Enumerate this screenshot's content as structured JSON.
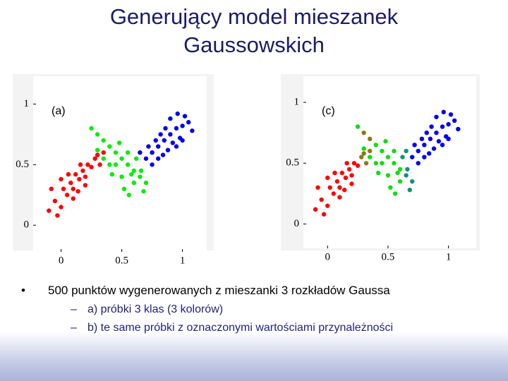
{
  "title": [
    "Generujący model mieszanek",
    "Gaussowskich"
  ],
  "bullets": [
    {
      "marker": "•",
      "text": "500 punktów wygenerowanych z mieszanki 3 rozkładów Gaussa"
    },
    {
      "marker": "–",
      "text": "a) próbki 3 klas (3 kolorów)"
    },
    {
      "marker": "–",
      "text": "b) te same próbki z oznaczonymi wartościami przynależności"
    }
  ],
  "chart_data": [
    {
      "type": "scatter",
      "annotation": "(a)",
      "xlim": [
        -0.23,
        1.2
      ],
      "ylim": [
        -0.22,
        1.23
      ],
      "xticks": [
        0,
        0.5,
        1
      ],
      "yticks": [
        0,
        0.5,
        1
      ],
      "series": [
        {
          "color": "#ff0000",
          "x": [
            -0.1,
            -0.05,
            0.0,
            0.02,
            0.05,
            0.08,
            0.1,
            0.12,
            0.15,
            0.18,
            0.2,
            0.22,
            0.25,
            0.28,
            0.3,
            0.06,
            0.0,
            -0.08,
            0.14,
            0.2,
            0.32,
            0.35,
            0.1,
            -0.03,
            0.16
          ],
          "y": [
            0.12,
            0.2,
            0.15,
            0.3,
            0.25,
            0.35,
            0.3,
            0.42,
            0.38,
            0.45,
            0.4,
            0.5,
            0.48,
            0.55,
            0.58,
            0.42,
            0.38,
            0.3,
            0.28,
            0.33,
            0.5,
            0.6,
            0.22,
            0.08,
            0.5
          ]
        },
        {
          "color": "#00ee00",
          "x": [
            0.3,
            0.35,
            0.4,
            0.45,
            0.5,
            0.55,
            0.6,
            0.65,
            0.7,
            0.5,
            0.45,
            0.55,
            0.6,
            0.4,
            0.52,
            0.62,
            0.25,
            0.48,
            0.58,
            0.68,
            0.35,
            0.42,
            0.56,
            0.66,
            0.3
          ],
          "y": [
            0.75,
            0.7,
            0.65,
            0.6,
            0.55,
            0.5,
            0.45,
            0.4,
            0.35,
            0.4,
            0.5,
            0.6,
            0.35,
            0.5,
            0.3,
            0.55,
            0.8,
            0.68,
            0.42,
            0.28,
            0.55,
            0.42,
            0.25,
            0.45,
            0.62
          ]
        },
        {
          "color": "#0000ee",
          "x": [
            0.7,
            0.75,
            0.8,
            0.85,
            0.9,
            0.95,
            1.0,
            1.05,
            0.8,
            0.88,
            0.92,
            0.98,
            1.02,
            0.86,
            0.75,
            0.82,
            0.95,
            1.08,
            0.72,
            0.9,
            0.78,
            0.96,
            0.65,
            1.0,
            0.84
          ],
          "y": [
            0.55,
            0.6,
            0.65,
            0.7,
            0.75,
            0.8,
            0.82,
            0.85,
            0.55,
            0.62,
            0.68,
            0.72,
            0.9,
            0.8,
            0.5,
            0.75,
            0.65,
            0.78,
            0.65,
            0.88,
            0.7,
            0.92,
            0.6,
            0.7,
            0.58
          ]
        }
      ]
    },
    {
      "type": "scatter",
      "annotation": "(c)",
      "xlim": [
        -0.2,
        1.23
      ],
      "ylim": [
        -0.2,
        1.215
      ],
      "xticks": [
        0,
        0.5,
        1
      ],
      "yticks": [
        0,
        0.5,
        1
      ],
      "series": [
        {
          "color": "#ff0000",
          "x": [
            -0.1,
            -0.05,
            0.0,
            0.02,
            0.05,
            0.08,
            0.1,
            0.12,
            0.15,
            0.18,
            0.2,
            0.22,
            0.25,
            0.06,
            0.0,
            -0.08,
            0.14,
            0.2,
            0.1,
            -0.03,
            0.16
          ],
          "y": [
            0.12,
            0.2,
            0.15,
            0.3,
            0.25,
            0.35,
            0.3,
            0.42,
            0.38,
            0.45,
            0.4,
            0.5,
            0.48,
            0.42,
            0.38,
            0.3,
            0.28,
            0.33,
            0.22,
            0.08,
            0.5
          ]
        },
        {
          "color": "#8a7a10",
          "x": [
            0.28,
            0.3,
            0.32,
            0.35,
            0.3,
            0.35
          ],
          "y": [
            0.55,
            0.58,
            0.5,
            0.6,
            0.75,
            0.7
          ]
        },
        {
          "color": "#10dd10",
          "x": [
            0.4,
            0.45,
            0.5,
            0.55,
            0.6,
            0.5,
            0.45,
            0.55,
            0.6,
            0.4,
            0.52,
            0.25,
            0.48,
            0.58,
            0.35,
            0.42,
            0.56,
            0.3
          ],
          "y": [
            0.65,
            0.6,
            0.55,
            0.5,
            0.45,
            0.4,
            0.5,
            0.6,
            0.35,
            0.5,
            0.3,
            0.8,
            0.68,
            0.42,
            0.55,
            0.42,
            0.25,
            0.62
          ]
        },
        {
          "color": "#109080",
          "x": [
            0.65,
            0.7,
            0.62,
            0.68,
            0.66,
            0.65
          ],
          "y": [
            0.4,
            0.35,
            0.55,
            0.28,
            0.45,
            0.6
          ]
        },
        {
          "color": "#0000ee",
          "x": [
            0.7,
            0.75,
            0.8,
            0.85,
            0.9,
            0.95,
            1.0,
            1.05,
            0.8,
            0.88,
            0.92,
            0.98,
            1.02,
            0.86,
            0.75,
            0.82,
            0.95,
            1.08,
            0.72,
            0.9,
            0.78,
            0.96,
            1.0,
            0.84
          ],
          "y": [
            0.55,
            0.6,
            0.65,
            0.7,
            0.75,
            0.8,
            0.82,
            0.85,
            0.55,
            0.62,
            0.68,
            0.72,
            0.9,
            0.8,
            0.5,
            0.75,
            0.65,
            0.78,
            0.65,
            0.88,
            0.7,
            0.92,
            0.7,
            0.58
          ]
        }
      ]
    }
  ]
}
